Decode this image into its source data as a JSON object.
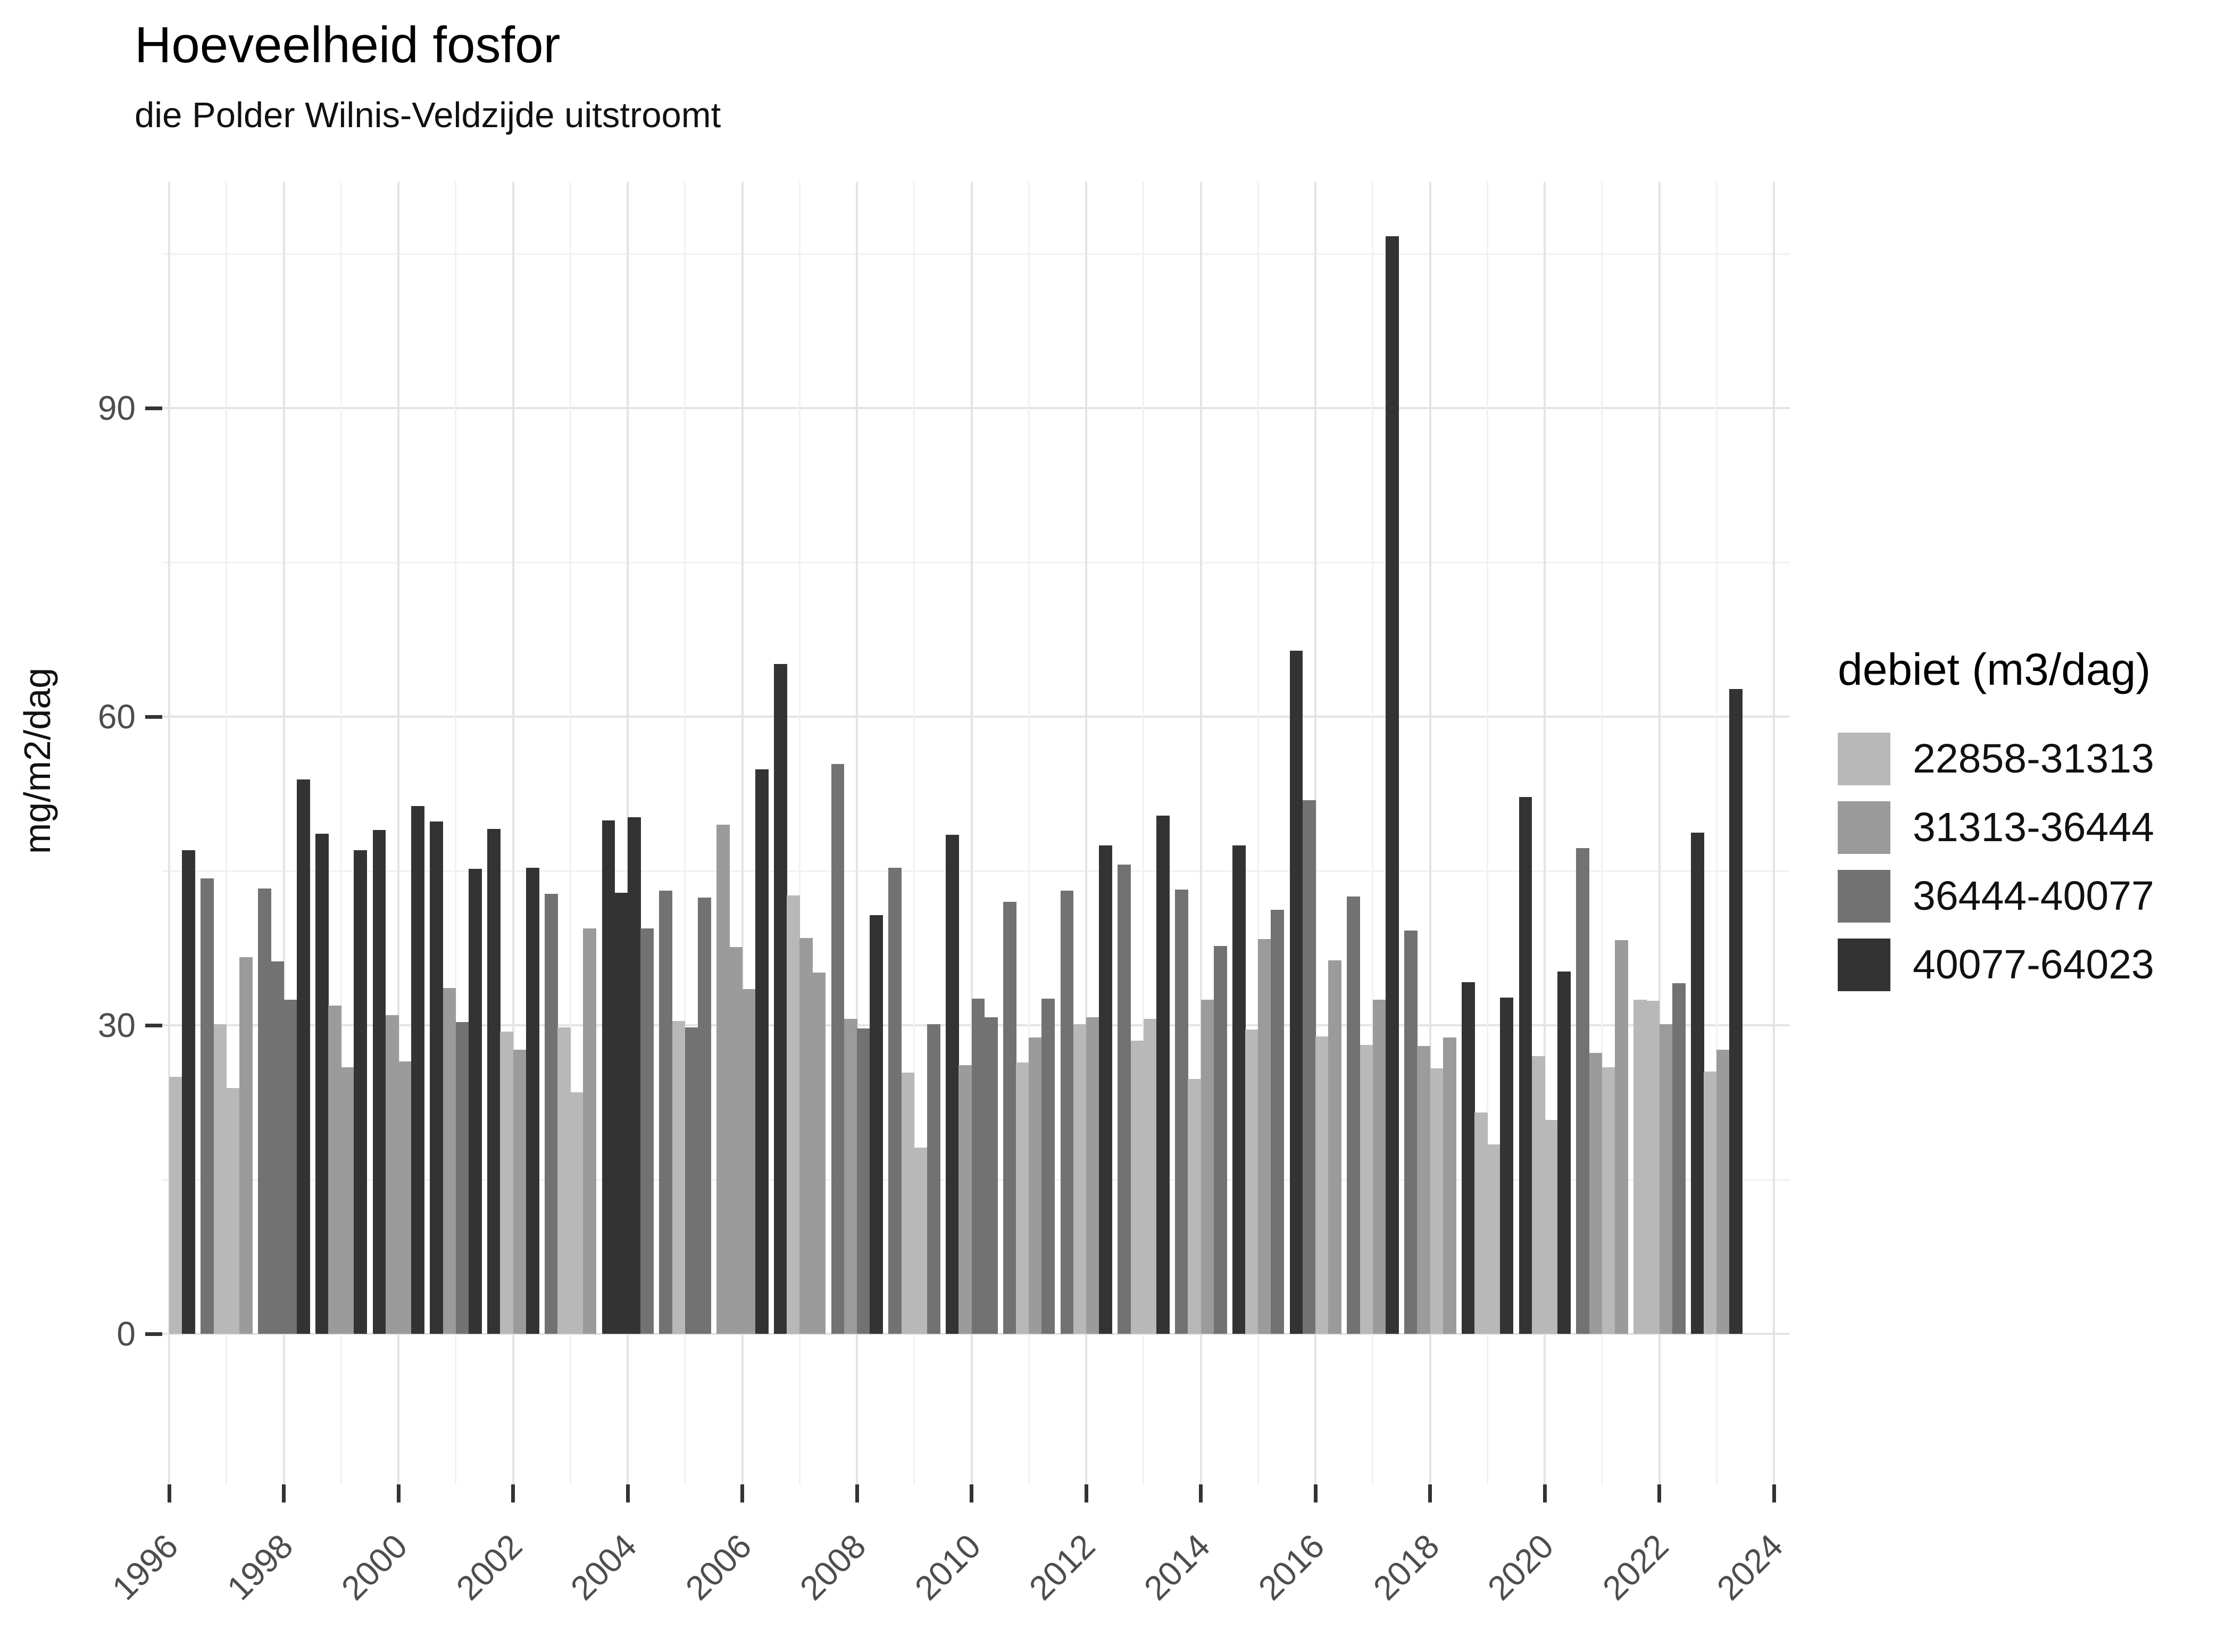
{
  "title": "Hoeveelheid fosfor",
  "subtitle": "die Polder Wilnis-Veldzijde uitstroomt",
  "legend": {
    "title": "debiet (m3/dag)",
    "items": [
      {
        "label": "22858-31313",
        "color": "#b8b8b8"
      },
      {
        "label": "31313-36444",
        "color": "#9b9b9b"
      },
      {
        "label": "36444-40077",
        "color": "#727272"
      },
      {
        "label": "40077-64023",
        "color": "#333333"
      }
    ]
  },
  "colors": {
    "background": "#ffffff",
    "grid_major": "#e4e4e4",
    "grid_minor": "#f1f1f1",
    "tick": "#333333",
    "axis_text": "#4d4d4d"
  },
  "chart_data": {
    "type": "bar",
    "title": "Hoeveelheid fosfor",
    "subtitle": "die Polder Wilnis-Veldzijde uitstroomt",
    "xlabel": "",
    "ylabel": "mg/m2/dag",
    "ylim": [
      0,
      112
    ],
    "grid": true,
    "legend_position": "right",
    "legend_title": "debiet (m3/dag)",
    "classes": [
      {
        "label": "22858-31313",
        "color": "#b8b8b8"
      },
      {
        "label": "31313-36444",
        "color": "#9b9b9b"
      },
      {
        "label": "36444-40077",
        "color": "#727272"
      },
      {
        "label": "40077-64023",
        "color": "#333333"
      }
    ],
    "y_ticks": [
      0,
      30,
      60,
      90
    ],
    "y_minor_ticks": [
      15,
      45,
      75,
      105
    ],
    "x_ticks": [
      1996,
      1998,
      2000,
      2002,
      2004,
      2006,
      2008,
      2010,
      2012,
      2014,
      2016,
      2018,
      2020,
      2022,
      2024
    ],
    "x_minor_ticks": [
      1997,
      1999,
      2001,
      2003,
      2005,
      2007,
      2009,
      2011,
      2013,
      2015,
      2017,
      2019,
      2021,
      2023
    ],
    "bar_unit": "year-quarter",
    "bars": [
      [
        1996,
        3,
        25.0,
        0
      ],
      [
        1996,
        4,
        47.0,
        3
      ],
      [
        1997,
        1,
        44.3,
        2
      ],
      [
        1997,
        2,
        30.1,
        0
      ],
      [
        1997,
        3,
        23.9,
        0
      ],
      [
        1997,
        4,
        36.6,
        1
      ],
      [
        1998,
        1,
        43.3,
        2
      ],
      [
        1998,
        2,
        36.2,
        2
      ],
      [
        1998,
        3,
        32.5,
        2
      ],
      [
        1998,
        4,
        53.9,
        3
      ],
      [
        1999,
        1,
        48.6,
        3
      ],
      [
        1999,
        2,
        31.9,
        1
      ],
      [
        1999,
        3,
        25.9,
        1
      ],
      [
        1999,
        4,
        47.0,
        3
      ],
      [
        2000,
        1,
        49.0,
        3
      ],
      [
        2000,
        2,
        31.0,
        1
      ],
      [
        2000,
        3,
        26.5,
        1
      ],
      [
        2000,
        4,
        51.3,
        3
      ],
      [
        2001,
        1,
        49.8,
        3
      ],
      [
        2001,
        2,
        33.6,
        1
      ],
      [
        2001,
        3,
        30.3,
        2
      ],
      [
        2001,
        4,
        45.2,
        3
      ],
      [
        2002,
        1,
        49.1,
        3
      ],
      [
        2002,
        2,
        29.4,
        0
      ],
      [
        2002,
        3,
        27.6,
        1
      ],
      [
        2002,
        4,
        45.3,
        3
      ],
      [
        2003,
        1,
        42.8,
        2
      ],
      [
        2003,
        2,
        29.8,
        0
      ],
      [
        2003,
        3,
        23.5,
        0
      ],
      [
        2003,
        4,
        39.4,
        1
      ],
      [
        2004,
        1,
        49.9,
        3
      ],
      [
        2004,
        2,
        42.9,
        3
      ],
      [
        2004,
        3,
        50.2,
        3
      ],
      [
        2004,
        4,
        39.4,
        2
      ],
      [
        2005,
        1,
        43.1,
        2
      ],
      [
        2005,
        2,
        30.4,
        0
      ],
      [
        2005,
        3,
        29.8,
        2
      ],
      [
        2005,
        4,
        42.4,
        2
      ],
      [
        2006,
        1,
        49.5,
        1
      ],
      [
        2006,
        2,
        37.6,
        1
      ],
      [
        2006,
        3,
        33.5,
        1
      ],
      [
        2006,
        4,
        54.9,
        3
      ],
      [
        2007,
        1,
        65.1,
        3
      ],
      [
        2007,
        2,
        42.6,
        0
      ],
      [
        2007,
        3,
        38.5,
        1
      ],
      [
        2007,
        4,
        35.1,
        1
      ],
      [
        2008,
        1,
        55.4,
        2
      ],
      [
        2008,
        2,
        30.6,
        1
      ],
      [
        2008,
        3,
        29.7,
        2
      ],
      [
        2008,
        4,
        40.7,
        3
      ],
      [
        2009,
        1,
        45.3,
        2
      ],
      [
        2009,
        2,
        25.4,
        0
      ],
      [
        2009,
        3,
        18.1,
        0
      ],
      [
        2009,
        4,
        30.1,
        2
      ],
      [
        2010,
        1,
        48.5,
        3
      ],
      [
        2010,
        2,
        26.1,
        1
      ],
      [
        2010,
        3,
        32.6,
        2
      ],
      [
        2010,
        4,
        30.8,
        2
      ],
      [
        2011,
        1,
        42.0,
        2
      ],
      [
        2011,
        2,
        26.4,
        0
      ],
      [
        2011,
        3,
        28.8,
        1
      ],
      [
        2011,
        4,
        32.6,
        2
      ],
      [
        2012,
        1,
        43.1,
        2
      ],
      [
        2012,
        2,
        30.1,
        0
      ],
      [
        2012,
        3,
        30.8,
        1
      ],
      [
        2012,
        4,
        47.5,
        3
      ],
      [
        2013,
        1,
        45.6,
        2
      ],
      [
        2013,
        2,
        28.5,
        0
      ],
      [
        2013,
        3,
        30.6,
        0
      ],
      [
        2013,
        4,
        50.4,
        3
      ],
      [
        2014,
        1,
        43.2,
        2
      ],
      [
        2014,
        2,
        24.8,
        0
      ],
      [
        2014,
        3,
        32.5,
        1
      ],
      [
        2014,
        4,
        37.7,
        2
      ],
      [
        2015,
        1,
        47.5,
        3
      ],
      [
        2015,
        2,
        29.6,
        0
      ],
      [
        2015,
        3,
        38.4,
        1
      ],
      [
        2015,
        4,
        41.2,
        2
      ],
      [
        2016,
        1,
        66.4,
        3
      ],
      [
        2016,
        2,
        51.9,
        2
      ],
      [
        2016,
        3,
        28.9,
        0
      ],
      [
        2016,
        4,
        36.3,
        1
      ],
      [
        2017,
        1,
        42.5,
        2
      ],
      [
        2017,
        2,
        28.1,
        0
      ],
      [
        2017,
        3,
        32.5,
        1
      ],
      [
        2017,
        4,
        106.7,
        3
      ],
      [
        2018,
        1,
        39.2,
        2
      ],
      [
        2018,
        2,
        28.0,
        1
      ],
      [
        2018,
        3,
        25.8,
        0
      ],
      [
        2018,
        4,
        28.8,
        1
      ],
      [
        2019,
        1,
        34.2,
        3
      ],
      [
        2019,
        2,
        21.5,
        0
      ],
      [
        2019,
        3,
        18.4,
        0
      ],
      [
        2019,
        4,
        32.7,
        3
      ],
      [
        2020,
        1,
        52.2,
        3
      ],
      [
        2020,
        2,
        27.0,
        0
      ],
      [
        2020,
        3,
        20.8,
        0
      ],
      [
        2020,
        4,
        35.2,
        3
      ],
      [
        2021,
        1,
        47.2,
        2
      ],
      [
        2021,
        2,
        27.3,
        1
      ],
      [
        2021,
        3,
        25.9,
        0
      ],
      [
        2021,
        4,
        38.3,
        1
      ],
      [
        2022,
        1,
        32.5,
        0
      ],
      [
        2022,
        2,
        32.4,
        0
      ],
      [
        2022,
        3,
        30.1,
        1
      ],
      [
        2022,
        4,
        34.1,
        2
      ],
      [
        2023,
        1,
        48.7,
        3
      ],
      [
        2023,
        2,
        25.5,
        0
      ],
      [
        2023,
        3,
        27.6,
        1
      ],
      [
        2023,
        4,
        62.7,
        3
      ]
    ]
  }
}
